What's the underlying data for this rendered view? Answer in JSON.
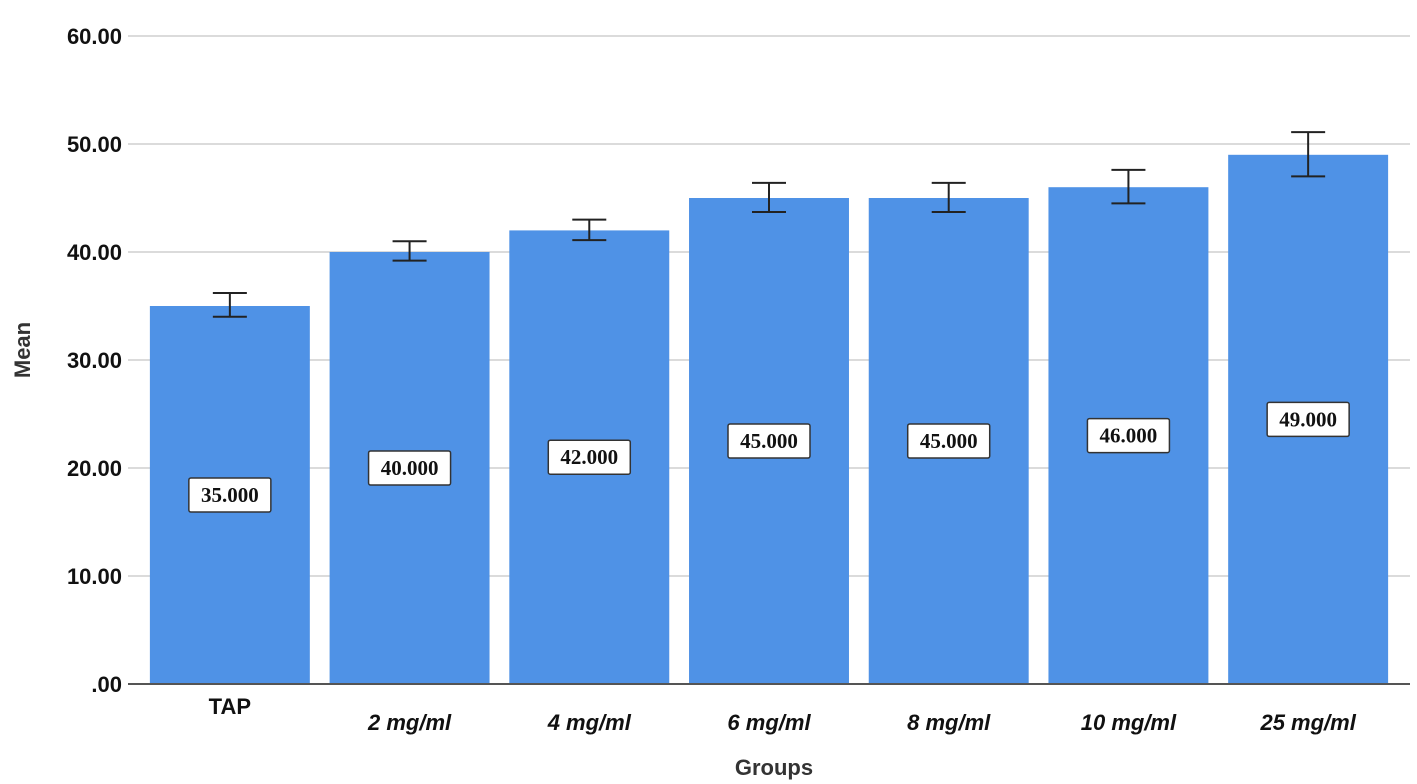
{
  "chart_data": {
    "type": "bar",
    "title": "",
    "xlabel": "Groups",
    "ylabel": "Mean",
    "categories": [
      "TAP",
      "2 mg/ml",
      "4 mg/ml",
      "6 mg/ml",
      "8 mg/ml",
      "10 mg/ml",
      "25 mg/ml"
    ],
    "values": [
      35.0,
      40.0,
      42.0,
      45.0,
      45.0,
      46.0,
      49.0
    ],
    "data_labels": [
      "35.000",
      "40.000",
      "42.000",
      "45.000",
      "45.000",
      "46.000",
      "49.000"
    ],
    "error_bars": {
      "lower": [
        34.0,
        39.2,
        41.1,
        43.7,
        43.7,
        44.5,
        47.0
      ],
      "upper": [
        36.2,
        41.0,
        43.0,
        46.4,
        46.4,
        47.6,
        51.1
      ]
    },
    "ylim": [
      0,
      60
    ],
    "y_ticks": [
      0,
      10,
      20,
      30,
      40,
      50,
      60
    ],
    "y_tick_labels": [
      ".00",
      "10.00",
      "20.00",
      "30.00",
      "40.00",
      "50.00",
      "60.00"
    ],
    "grid": true,
    "bar_color": "#4f92e6",
    "legend": "none"
  }
}
